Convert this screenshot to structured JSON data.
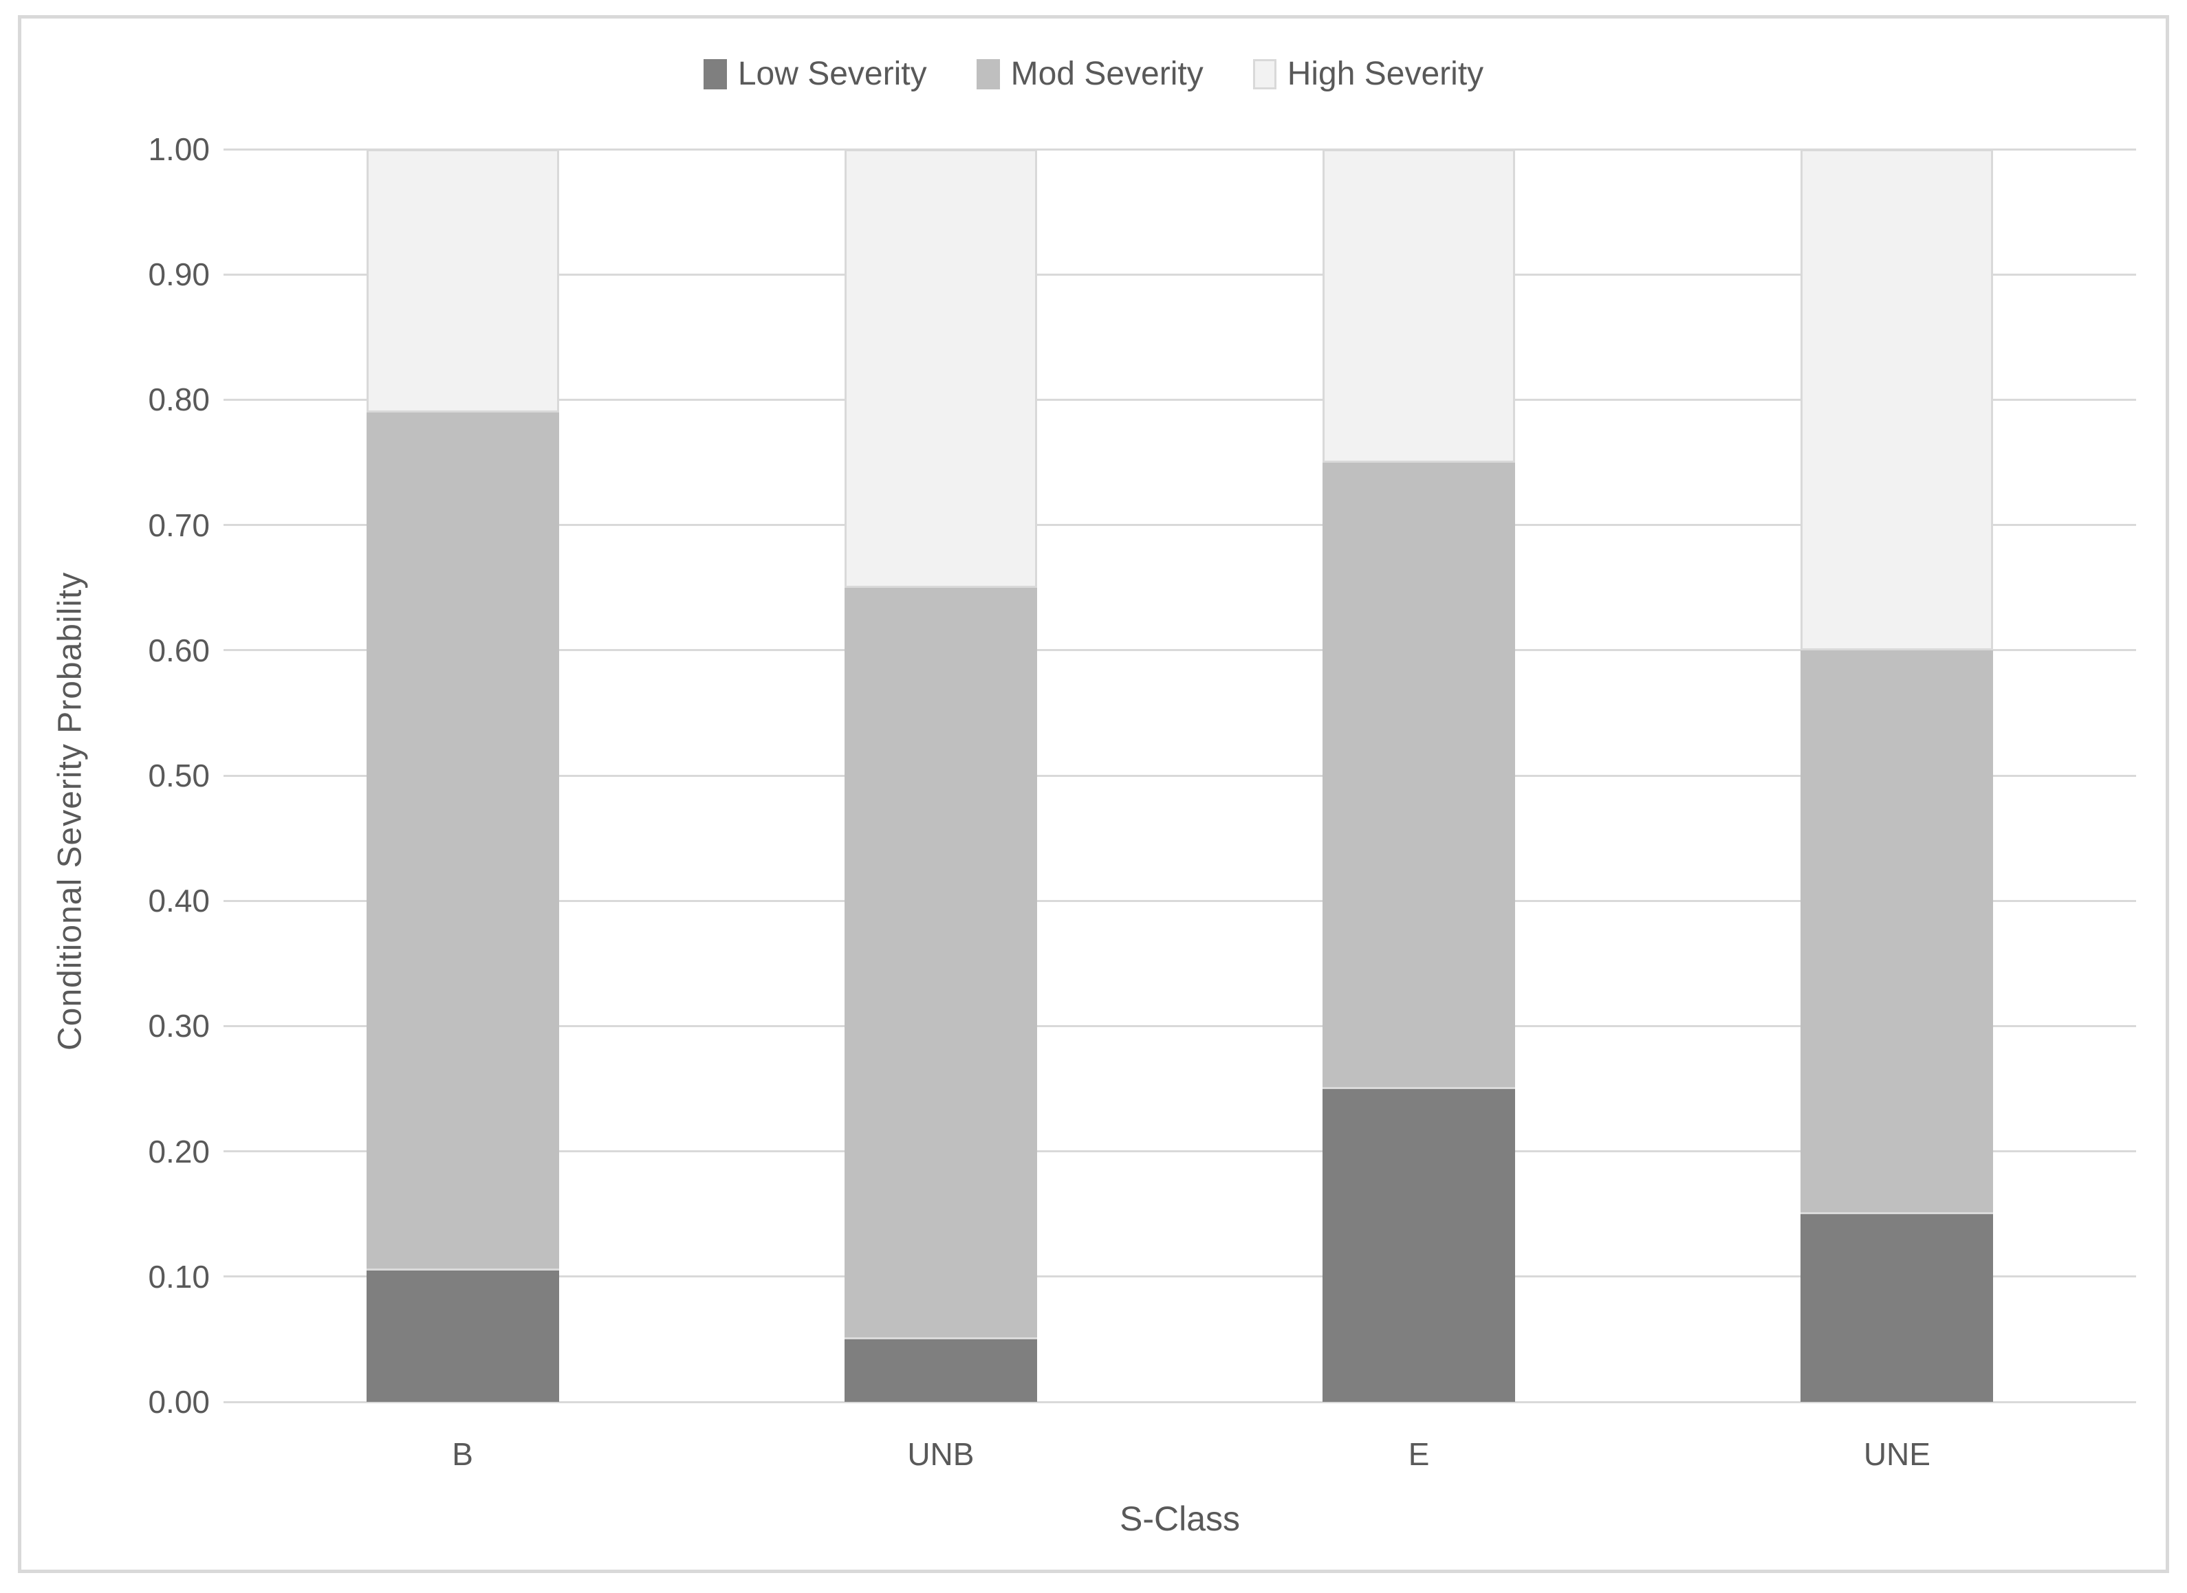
{
  "frame": {
    "border_color": "#d9d9d9",
    "background": "#ffffff"
  },
  "chart_data": {
    "type": "bar",
    "stacked": true,
    "categories": [
      "B",
      "UNB",
      "E",
      "UNE"
    ],
    "series": [
      {
        "name": "Low Severity",
        "color": "#7f7f7f",
        "values": [
          0.105,
          0.05,
          0.25,
          0.15
        ]
      },
      {
        "name": "Mod Severity",
        "color": "#bfbfbf",
        "values": [
          0.685,
          0.6,
          0.5,
          0.45
        ]
      },
      {
        "name": "High Severity",
        "color": "#f2f2f2",
        "values": [
          0.21,
          0.35,
          0.25,
          0.4
        ]
      }
    ],
    "xlabel": "S-Class",
    "ylabel": "Conditional Severity Probability",
    "ylim": [
      0,
      1
    ],
    "ytick_step": 0.1,
    "yticks": [
      "0.00",
      "0.10",
      "0.20",
      "0.30",
      "0.40",
      "0.50",
      "0.60",
      "0.70",
      "0.80",
      "0.90",
      "1.00"
    ],
    "legend_position": "top",
    "grid": true,
    "gridline_color": "#d9d9d9",
    "text_color": "#595959"
  }
}
